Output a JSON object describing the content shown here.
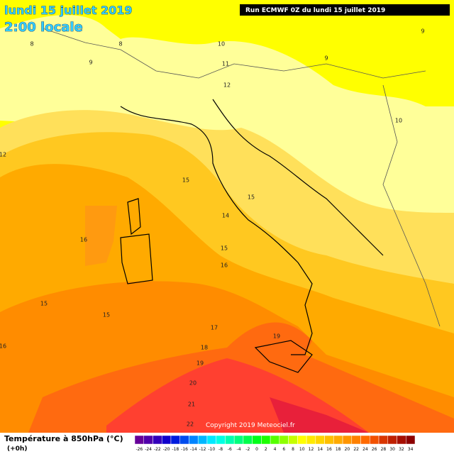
{
  "header": {
    "date": "lundi 15 juillet 2019",
    "time": "2:00 locale",
    "run": "Run ECMWF 0Z du lundi 15 juillet 2019"
  },
  "contour_labels": [
    8,
    8,
    9,
    9,
    9,
    10,
    11,
    12,
    10,
    12,
    15,
    15,
    14,
    16,
    15,
    16,
    15,
    15,
    17,
    19,
    18,
    19,
    20,
    21,
    22,
    16
  ],
  "legend": {
    "title": "Température à 850hPa (°C)",
    "lead": "(+0h)",
    "copyright": "Copyright 2019 Meteociel.fr",
    "scale": [
      -26,
      -24,
      -22,
      -20,
      -18,
      -16,
      -14,
      -12,
      -10,
      -8,
      -6,
      -4,
      -2,
      0,
      2,
      4,
      6,
      8,
      10,
      12,
      14,
      16,
      18,
      20,
      22,
      24,
      26,
      28,
      30,
      32,
      34
    ]
  }
}
